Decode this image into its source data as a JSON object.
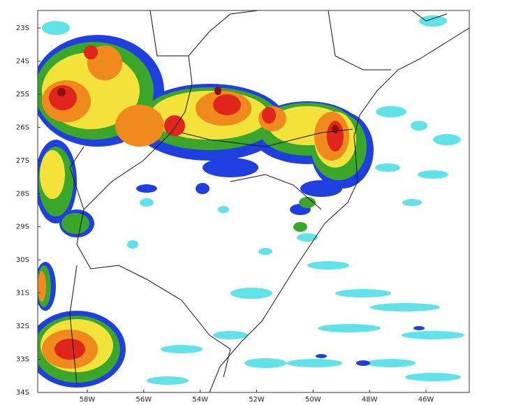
{
  "map": {
    "lat_labels": [
      "23S",
      "24S",
      "25S",
      "26S",
      "27S",
      "28S",
      "29S",
      "30S",
      "31S",
      "32S",
      "33S",
      "34S"
    ],
    "lon_labels": [
      "58W",
      "56W",
      "54W",
      "52W",
      "50W",
      "48W",
      "46W"
    ]
  }
}
